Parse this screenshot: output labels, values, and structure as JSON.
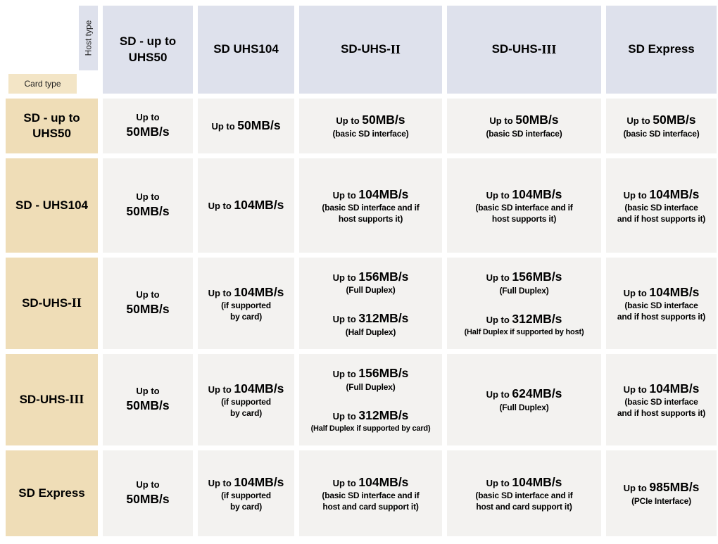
{
  "colors": {
    "host_header_bg": "#dee1ec",
    "card_header_bg": "#efddb7",
    "card_type_chip_bg": "#f3e5c6",
    "cell_bg": "#f3f2f0",
    "background": "#ffffff",
    "text": "#000000"
  },
  "chart_data": {
    "type": "table",
    "axis_labels": {
      "host": "Host type",
      "card": "Card type"
    },
    "up_to_label": "Up to",
    "column_headers": [
      {
        "main": "SD - up to UHS50",
        "numeral": ""
      },
      {
        "main": "SD UHS104",
        "numeral": ""
      },
      {
        "main": "SD-UHS-",
        "numeral": "II"
      },
      {
        "main": "SD-UHS-",
        "numeral": "III"
      },
      {
        "main": "SD Express",
        "numeral": ""
      }
    ],
    "row_headers": [
      {
        "main": "SD - up to UHS50",
        "numeral": ""
      },
      {
        "main": "SD - UHS104",
        "numeral": ""
      },
      {
        "main": "SD-UHS-",
        "numeral": "II"
      },
      {
        "main": "SD-UHS-",
        "numeral": "III"
      },
      {
        "main": "SD Express",
        "numeral": ""
      }
    ],
    "cells": [
      [
        [
          {
            "speed": "50MB/s",
            "stacked": true
          }
        ],
        [
          {
            "speed": "50MB/s"
          }
        ],
        [
          {
            "speed": "50MB/s",
            "note": [
              "(basic SD interface)"
            ]
          }
        ],
        [
          {
            "speed": "50MB/s",
            "note": [
              "(basic SD interface)"
            ]
          }
        ],
        [
          {
            "speed": "50MB/s",
            "note": [
              "(basic SD interface)"
            ]
          }
        ]
      ],
      [
        [
          {
            "speed": "50MB/s",
            "stacked": true
          }
        ],
        [
          {
            "speed": "104MB/s"
          }
        ],
        [
          {
            "speed": "104MB/s",
            "note": [
              "(basic SD interface and if",
              "host supports it)"
            ]
          }
        ],
        [
          {
            "speed": "104MB/s",
            "note": [
              "(basic SD interface and if",
              "host supports it)"
            ]
          }
        ],
        [
          {
            "speed": "104MB/s",
            "note": [
              "(basic SD interface",
              "and if host supports it)"
            ]
          }
        ]
      ],
      [
        [
          {
            "speed": "50MB/s",
            "stacked": true
          }
        ],
        [
          {
            "speed": "104MB/s",
            "note": [
              "(if supported",
              "by card)"
            ]
          }
        ],
        [
          {
            "speed": "156MB/s",
            "note": [
              "(Full Duplex)"
            ]
          },
          {
            "speed": "312MB/s",
            "note": [
              "(Half Duplex)"
            ]
          }
        ],
        [
          {
            "speed": "156MB/s",
            "note": [
              "(Full Duplex)"
            ]
          },
          {
            "speed": "312MB/s",
            "note": [
              "(Half Duplex if supported by host)"
            ],
            "note_small": true
          }
        ],
        [
          {
            "speed": "104MB/s",
            "note": [
              "(basic SD interface",
              "and if host supports it)"
            ]
          }
        ]
      ],
      [
        [
          {
            "speed": "50MB/s",
            "stacked": true
          }
        ],
        [
          {
            "speed": "104MB/s",
            "note": [
              "(if supported",
              "by card)"
            ]
          }
        ],
        [
          {
            "speed": "156MB/s",
            "note": [
              "(Full Duplex)"
            ]
          },
          {
            "speed": "312MB/s",
            "note": [
              "(Half Duplex if supported by card)"
            ],
            "note_small": true
          }
        ],
        [
          {
            "speed": "624MB/s",
            "note": [
              "(Full Duplex)"
            ]
          }
        ],
        [
          {
            "speed": "104MB/s",
            "note": [
              "(basic SD interface",
              "and if host supports it)"
            ]
          }
        ]
      ],
      [
        [
          {
            "speed": "50MB/s",
            "stacked": true
          }
        ],
        [
          {
            "speed": "104MB/s",
            "note": [
              "(if supported",
              "by card)"
            ]
          }
        ],
        [
          {
            "speed": "104MB/s",
            "note": [
              "(basic SD interface and if",
              "host and card support it)"
            ]
          }
        ],
        [
          {
            "speed": "104MB/s",
            "note": [
              "(basic SD interface and if",
              "host and card support it)"
            ]
          }
        ],
        [
          {
            "speed": "985MB/s",
            "note": [
              "(PCIe Interface)"
            ]
          }
        ]
      ]
    ],
    "values": [
      [
        "Up to 50MB/s",
        "Up to 50MB/s",
        "Up to 50MB/s (basic SD interface)",
        "Up to 50MB/s (basic SD interface)",
        "Up to 50MB/s (basic SD interface)"
      ],
      [
        "Up to 50MB/s",
        "Up to 104MB/s",
        "Up to 104MB/s (basic SD interface and if host supports it)",
        "Up to 104MB/s (basic SD interface and if host supports it)",
        "Up to 104MB/s (basic SD interface and if host supports it)"
      ],
      [
        "Up to 50MB/s",
        "Up to 104MB/s (if supported by card)",
        "Up to 156MB/s (Full Duplex); Up to 312MB/s (Half Duplex)",
        "Up to 156MB/s (Full Duplex); Up to 312MB/s (Half Duplex if supported by host)",
        "Up to 104MB/s (basic SD interface and if host supports it)"
      ],
      [
        "Up to 50MB/s",
        "Up to 104MB/s (if supported by card)",
        "Up to 156MB/s (Full Duplex); Up to 312MB/s (Half Duplex if supported by card)",
        "Up to 624MB/s (Full Duplex)",
        "Up to 104MB/s (basic SD interface and if host supports it)"
      ],
      [
        "Up to 50MB/s",
        "Up to 104MB/s (if supported by card)",
        "Up to 104MB/s (basic SD interface and if host and card support it)",
        "Up to 104MB/s (basic SD interface and if host and card support it)",
        "Up to 985MB/s (PCIe Interface)"
      ]
    ]
  }
}
